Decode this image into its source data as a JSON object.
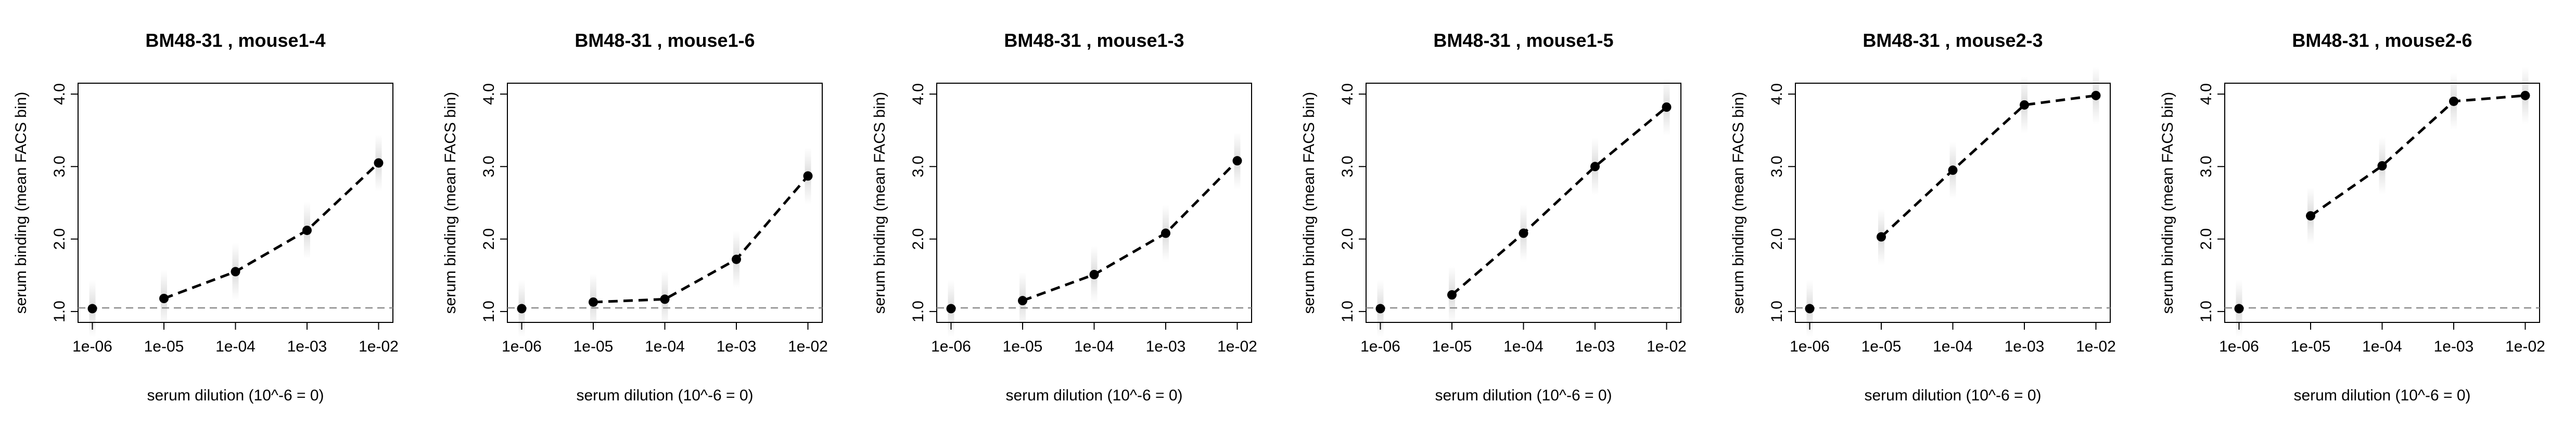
{
  "shared": {
    "xlabel": "serum dilution (10^-6 = 0)",
    "ylabel": "serum binding (mean FACS bin)",
    "x_tick_labels": [
      "1e-06",
      "1e-05",
      "1e-04",
      "1e-03",
      "1e-02"
    ],
    "y_tick_labels": [
      "1.0",
      "2.0",
      "3.0",
      "4.0"
    ],
    "y_ticks": [
      1.0,
      2.0,
      3.0,
      4.0
    ],
    "baseline": 1.05,
    "colors": {
      "line": "#000000",
      "baseline": "#8c8c8c",
      "shading": "#c8c8c8"
    }
  },
  "chart_data": [
    {
      "type": "line",
      "title": "BM48-31 , mouse1-4",
      "xlabel": "serum dilution (10^-6 = 0)",
      "ylabel": "serum binding (mean FACS bin)",
      "categories": [
        "1e-06",
        "1e-05",
        "1e-04",
        "1e-03",
        "1e-02"
      ],
      "x": [
        -6,
        -5,
        -4,
        -3,
        -2
      ],
      "values": [
        1.04,
        1.18,
        1.55,
        2.12,
        3.05
      ],
      "baseline": 1.05,
      "xlim": [
        -6.2,
        -1.8
      ],
      "ylim": [
        0.85,
        4.15
      ],
      "grid": false
    },
    {
      "type": "line",
      "title": "BM48-31 , mouse1-6",
      "xlabel": "serum dilution (10^-6 = 0)",
      "ylabel": "serum binding (mean FACS bin)",
      "categories": [
        "1e-06",
        "1e-05",
        "1e-04",
        "1e-03",
        "1e-02"
      ],
      "x": [
        -6,
        -5,
        -4,
        -3,
        -2
      ],
      "values": [
        1.04,
        1.13,
        1.17,
        1.72,
        2.87
      ],
      "baseline": 1.05,
      "xlim": [
        -6.2,
        -1.8
      ],
      "ylim": [
        0.85,
        4.15
      ],
      "grid": false
    },
    {
      "type": "line",
      "title": "BM48-31 , mouse1-3",
      "xlabel": "serum dilution (10^-6 = 0)",
      "ylabel": "serum binding (mean FACS bin)",
      "categories": [
        "1e-06",
        "1e-05",
        "1e-04",
        "1e-03",
        "1e-02"
      ],
      "x": [
        -6,
        -5,
        -4,
        -3,
        -2
      ],
      "values": [
        1.04,
        1.15,
        1.51,
        2.08,
        3.08
      ],
      "baseline": 1.05,
      "xlim": [
        -6.2,
        -1.8
      ],
      "ylim": [
        0.85,
        4.15
      ],
      "grid": false
    },
    {
      "type": "line",
      "title": "BM48-31 , mouse1-5",
      "xlabel": "serum dilution (10^-6 = 0)",
      "ylabel": "serum binding (mean FACS bin)",
      "categories": [
        "1e-06",
        "1e-05",
        "1e-04",
        "1e-03",
        "1e-02"
      ],
      "x": [
        -6,
        -5,
        -4,
        -3,
        -2
      ],
      "values": [
        1.04,
        1.23,
        2.08,
        3.0,
        3.82
      ],
      "baseline": 1.05,
      "xlim": [
        -6.2,
        -1.8
      ],
      "ylim": [
        0.85,
        4.15
      ],
      "grid": false
    },
    {
      "type": "line",
      "title": "BM48-31 , mouse2-3",
      "xlabel": "serum dilution (10^-6 = 0)",
      "ylabel": "serum binding (mean FACS bin)",
      "categories": [
        "1e-06",
        "1e-05",
        "1e-04",
        "1e-03",
        "1e-02"
      ],
      "x": [
        -6,
        -5,
        -4,
        -3,
        -2
      ],
      "values": [
        1.04,
        2.03,
        2.95,
        3.85,
        3.98
      ],
      "baseline": 1.05,
      "xlim": [
        -6.2,
        -1.8
      ],
      "ylim": [
        0.85,
        4.15
      ],
      "grid": false
    },
    {
      "type": "line",
      "title": "BM48-31 , mouse2-6",
      "xlabel": "serum dilution (10^-6 = 0)",
      "ylabel": "serum binding (mean FACS bin)",
      "categories": [
        "1e-06",
        "1e-05",
        "1e-04",
        "1e-03",
        "1e-02"
      ],
      "x": [
        -6,
        -5,
        -4,
        -3,
        -2
      ],
      "values": [
        1.04,
        2.32,
        3.01,
        3.9,
        3.98
      ],
      "baseline": 1.05,
      "xlim": [
        -6.2,
        -1.8
      ],
      "ylim": [
        0.85,
        4.15
      ],
      "grid": false
    }
  ]
}
